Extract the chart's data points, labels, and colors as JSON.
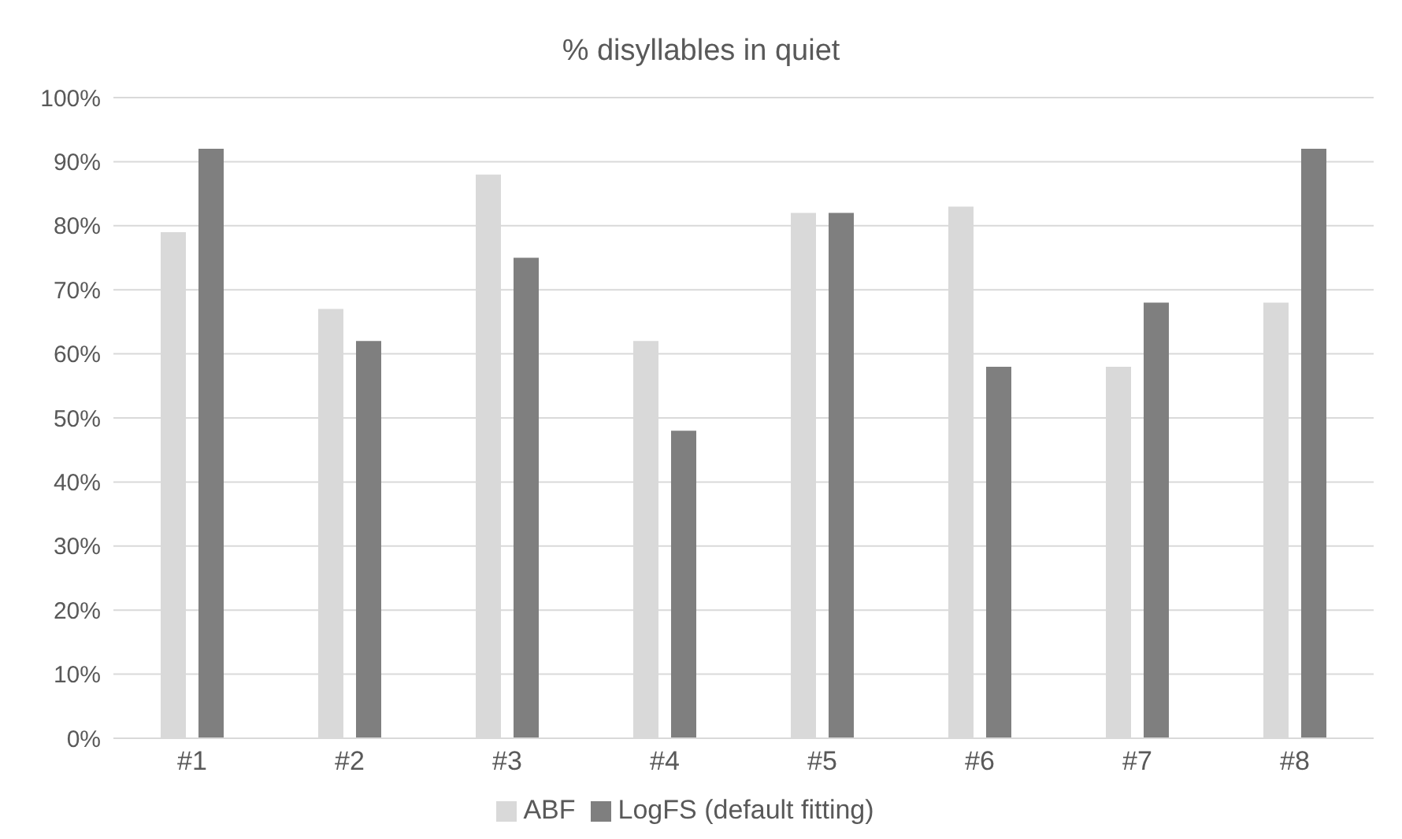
{
  "chart_data": {
    "type": "bar",
    "title": "% disyllables in quiet",
    "categories": [
      "#1",
      "#2",
      "#3",
      "#4",
      "#5",
      "#6",
      "#7",
      "#8"
    ],
    "series": [
      {
        "name": "ABF",
        "color": "#d9d9d9",
        "values": [
          79,
          67,
          88,
          62,
          82,
          83,
          58,
          68
        ]
      },
      {
        "name": "LogFS (default fitting)",
        "color": "#7f7f7f",
        "values": [
          92,
          62,
          75,
          48,
          82,
          58,
          68,
          92
        ]
      }
    ],
    "ylim": [
      0,
      100
    ],
    "yticks": [
      {
        "value": 0,
        "label": "0%"
      },
      {
        "value": 10,
        "label": "10%"
      },
      {
        "value": 20,
        "label": "20%"
      },
      {
        "value": 30,
        "label": "30%"
      },
      {
        "value": 40,
        "label": "40%"
      },
      {
        "value": 50,
        "label": "50%"
      },
      {
        "value": 60,
        "label": "60%"
      },
      {
        "value": 70,
        "label": "70%"
      },
      {
        "value": 80,
        "label": "80%"
      },
      {
        "value": 90,
        "label": "90%"
      },
      {
        "value": 100,
        "label": "100%"
      }
    ],
    "grid": "y",
    "legend": "bottom"
  }
}
